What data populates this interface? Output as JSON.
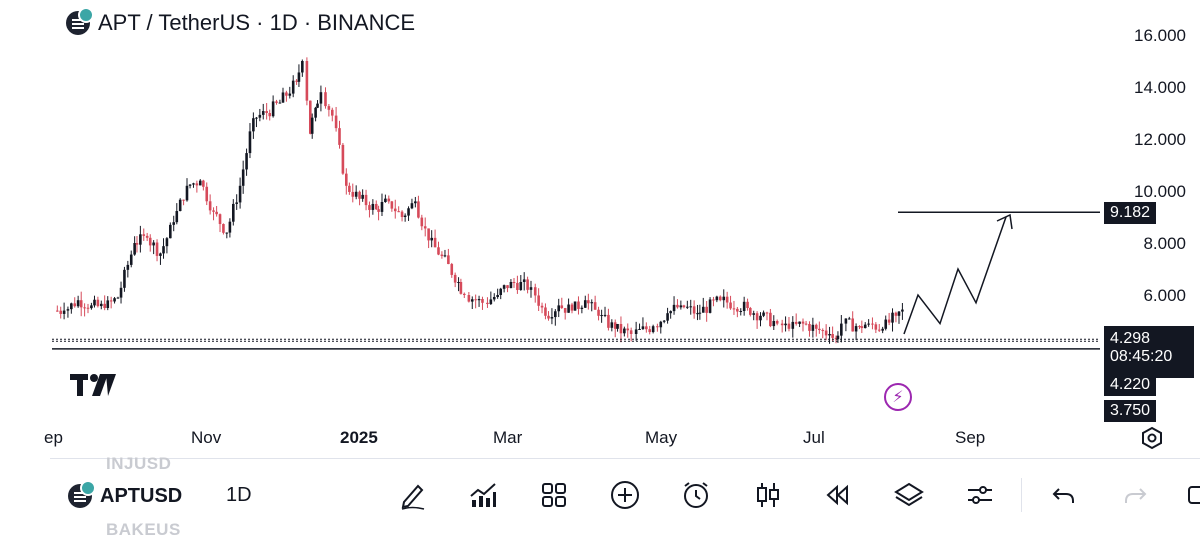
{
  "header": {
    "title": "APT / TetherUS · 1D · BINANCE"
  },
  "yaxis": {
    "labels": [
      "16.000",
      "14.000",
      "12.000",
      "10.000",
      "8.000",
      "6.000"
    ]
  },
  "xaxis": {
    "labels": [
      "ep",
      "Nov",
      "2025",
      "Mar",
      "May",
      "Jul",
      "Sep"
    ]
  },
  "price_boxes": {
    "target": "9.182",
    "current": "4.298",
    "countdown": "08:45:20",
    "support": "4.220",
    "low": "3.750"
  },
  "toolbar": {
    "symbol": "APTUSD",
    "timeframe": "1D",
    "ghost_above": "INJUSD",
    "ghost_below": "BAKEUS"
  },
  "colors": {
    "up": "#131722",
    "down": "#d64a5a",
    "background": "#ffffff",
    "text": "#131722",
    "alert": "#9c27b0"
  },
  "chart_data": {
    "type": "candlestick",
    "title": "APT / TetherUS · 1D · BINANCE",
    "ylim": [
      2.5,
      16.8
    ],
    "y_ticks": [
      16,
      14,
      12,
      10,
      8,
      6
    ],
    "x": [
      "2024-09-01",
      "2024-09-05",
      "2024-09-10",
      "2024-09-15",
      "2024-09-20",
      "2024-09-25",
      "2024-10-01",
      "2024-10-06",
      "2024-10-11",
      "2024-10-16",
      "2024-10-21",
      "2024-10-26",
      "2024-10-31",
      "2024-11-05",
      "2024-11-10",
      "2024-11-15",
      "2024-11-20",
      "2024-11-25",
      "2024-12-01",
      "2024-12-04",
      "2024-12-06",
      "2024-12-08",
      "2024-12-11",
      "2024-12-15",
      "2024-12-20",
      "2024-12-25",
      "2024-12-31",
      "2025-01-05",
      "2025-01-10",
      "2025-01-15",
      "2025-01-20",
      "2025-01-25",
      "2025-01-31",
      "2025-02-03",
      "2025-02-10",
      "2025-02-15",
      "2025-02-20",
      "2025-02-28",
      "2025-03-05",
      "2025-03-10",
      "2025-03-15",
      "2025-03-20",
      "2025-03-25",
      "2025-03-31",
      "2025-04-07",
      "2025-04-15",
      "2025-04-20",
      "2025-04-25",
      "2025-05-01",
      "2025-05-10",
      "2025-05-20",
      "2025-05-25",
      "2025-06-01",
      "2025-06-05",
      "2025-06-10",
      "2025-06-15",
      "2025-06-20",
      "2025-06-22",
      "2025-06-25",
      "2025-07-01",
      "2025-07-05",
      "2025-07-10",
      "2025-07-15",
      "2025-07-20",
      "2025-07-25",
      "2025-07-31",
      "2025-08-01",
      "2025-08-05",
      "2025-08-10"
    ],
    "close": [
      5.4,
      5.8,
      5.6,
      5.5,
      5.9,
      8.0,
      8.2,
      7.6,
      8.8,
      10.2,
      10.4,
      9.2,
      8.4,
      10.2,
      12.8,
      13.0,
      13.4,
      14.2,
      15.0,
      12.2,
      13.2,
      13.8,
      12.9,
      10.2,
      9.7,
      9.3,
      9.6,
      9.0,
      9.6,
      8.1,
      7.5,
      6.5,
      6.0,
      5.7,
      6.0,
      6.5,
      6.3,
      5.2,
      5.6,
      5.4,
      5.8,
      5.2,
      4.7,
      4.5,
      4.8,
      5.3,
      5.6,
      5.3,
      5.8,
      5.5,
      5.2,
      4.9,
      4.7,
      4.9,
      4.7,
      4.5,
      4.3,
      4.9,
      4.8,
      4.9,
      4.7,
      5.2,
      5.5,
      5.2,
      4.8,
      4.5,
      4.4,
      4.3,
      4.298
    ],
    "projection": {
      "label": "9.182",
      "path_y": [
        4.5,
        6.0,
        4.9,
        7.0,
        5.7,
        9.0
      ]
    },
    "horizontal_levels": [
      9.182,
      4.298,
      4.22,
      3.75
    ],
    "grid": false
  }
}
